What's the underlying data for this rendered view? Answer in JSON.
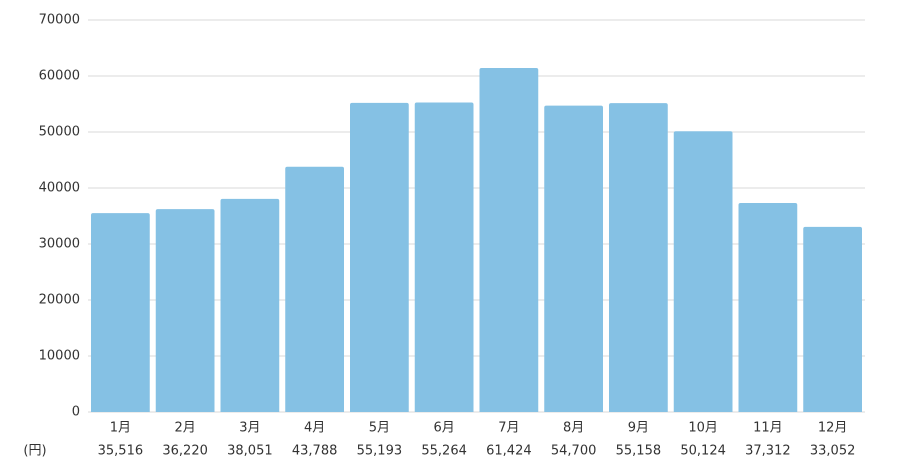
{
  "chart_data": {
    "type": "bar",
    "categories": [
      "1月",
      "2月",
      "3月",
      "4月",
      "5月",
      "6月",
      "7月",
      "8月",
      "9月",
      "10月",
      "11月",
      "12月"
    ],
    "values": [
      35516,
      36220,
      38051,
      43788,
      55193,
      55264,
      61424,
      54700,
      55158,
      50124,
      37312,
      33052
    ],
    "value_labels": [
      "35,516",
      "36,220",
      "38,051",
      "43,788",
      "55,193",
      "55,264",
      "61,424",
      "54,700",
      "55,158",
      "50,124",
      "37,312",
      "33,052"
    ],
    "unit_label": "(円)",
    "color": "#85c1e4",
    "ylim": [
      0,
      70000
    ],
    "yticks": [
      0,
      10000,
      20000,
      30000,
      40000,
      50000,
      60000,
      70000
    ],
    "grid": true
  }
}
